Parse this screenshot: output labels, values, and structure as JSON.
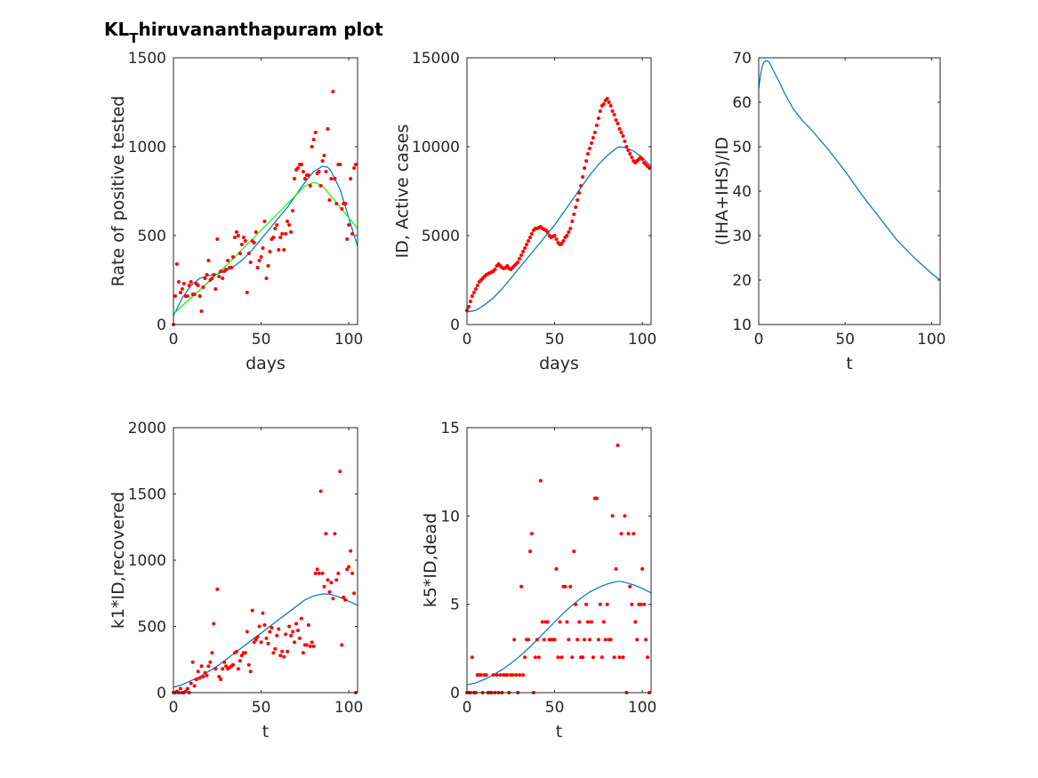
{
  "figure": {
    "title_main": "KL",
    "title_sub": "T",
    "title_rest": "hiruvananthapuram plot"
  },
  "colors": {
    "data_points": "#ff0000",
    "model_curve": "#0072bd",
    "fit_curve": "#00ff00",
    "axis": "#262626",
    "background": "#ffffff"
  },
  "chart_data": [
    {
      "id": "positive",
      "type": "scatter",
      "xlabel": "days",
      "ylabel": "Rate of positive tested",
      "xlim": [
        0,
        105
      ],
      "ylim": [
        0,
        1500
      ],
      "xticks": [
        0,
        50,
        100
      ],
      "yticks": [
        0,
        500,
        1000,
        1500
      ],
      "scatter_x": [
        0,
        1,
        2,
        3,
        4,
        5,
        6,
        7,
        8,
        9,
        10,
        11,
        12,
        13,
        14,
        15,
        16,
        17,
        18,
        19,
        20,
        21,
        22,
        23,
        24,
        25,
        26,
        27,
        28,
        29,
        30,
        31,
        32,
        33,
        34,
        35,
        36,
        37,
        38,
        39,
        40,
        41,
        42,
        43,
        44,
        45,
        46,
        47,
        48,
        49,
        50,
        51,
        52,
        53,
        54,
        55,
        56,
        57,
        58,
        59,
        60,
        61,
        62,
        63,
        64,
        65,
        66,
        67,
        68,
        69,
        70,
        71,
        72,
        73,
        74,
        75,
        76,
        77,
        78,
        79,
        80,
        81,
        82,
        83,
        84,
        85,
        86,
        87,
        88,
        89,
        90,
        91,
        92,
        93,
        94,
        95,
        96,
        97,
        98,
        99,
        100,
        101,
        102,
        103,
        104
      ],
      "scatter_y": [
        0,
        160,
        340,
        240,
        180,
        200,
        230,
        160,
        160,
        220,
        240,
        170,
        170,
        230,
        220,
        160,
        75,
        210,
        260,
        280,
        360,
        250,
        260,
        280,
        200,
        480,
        270,
        300,
        260,
        300,
        310,
        360,
        320,
        320,
        380,
        490,
        520,
        500,
        400,
        450,
        490,
        470,
        180,
        400,
        350,
        470,
        460,
        520,
        320,
        360,
        380,
        430,
        580,
        260,
        330,
        410,
        480,
        490,
        540,
        560,
        420,
        490,
        510,
        420,
        510,
        580,
        560,
        520,
        640,
        820,
        870,
        880,
        900,
        900,
        860,
        820,
        840,
        840,
        780,
        1000,
        1040,
        1080,
        850,
        860,
        780,
        920,
        950,
        860,
        1100,
        700,
        820,
        1310,
        820,
        680,
        900,
        900,
        650,
        680,
        680,
        480,
        560,
        820,
        510,
        880,
        900
      ],
      "curves": [
        {
          "name": "model",
          "x": [
            0,
            5,
            10,
            15,
            20,
            25,
            30,
            35,
            40,
            45,
            50,
            55,
            60,
            65,
            70,
            75,
            80,
            85,
            88,
            90,
            95,
            100,
            105
          ],
          "y": [
            50,
            150,
            220,
            260,
            275,
            285,
            300,
            330,
            370,
            420,
            480,
            540,
            600,
            660,
            730,
            800,
            860,
            890,
            885,
            860,
            760,
            600,
            440
          ]
        },
        {
          "name": "fit",
          "x": [
            0,
            10,
            20,
            30,
            40,
            50,
            60,
            70,
            75,
            80,
            85,
            90,
            95,
            100,
            105
          ],
          "y": [
            60,
            150,
            240,
            330,
            430,
            530,
            630,
            730,
            780,
            800,
            780,
            720,
            660,
            600,
            540
          ]
        }
      ]
    },
    {
      "id": "active",
      "type": "scatter",
      "xlabel": "days",
      "ylabel": "ID, Active cases",
      "xlim": [
        0,
        105
      ],
      "ylim": [
        0,
        15000
      ],
      "xticks": [
        0,
        50,
        100
      ],
      "yticks": [
        0,
        5000,
        10000,
        15000
      ],
      "scatter_x": [
        0,
        1,
        2,
        3,
        4,
        5,
        6,
        7,
        8,
        9,
        10,
        11,
        12,
        13,
        14,
        15,
        16,
        17,
        18,
        19,
        20,
        21,
        22,
        23,
        24,
        25,
        26,
        27,
        28,
        29,
        30,
        31,
        32,
        33,
        34,
        35,
        36,
        37,
        38,
        39,
        40,
        41,
        42,
        43,
        44,
        45,
        46,
        47,
        48,
        49,
        50,
        51,
        52,
        53,
        54,
        55,
        56,
        57,
        58,
        59,
        60,
        61,
        62,
        63,
        64,
        65,
        66,
        67,
        68,
        69,
        70,
        71,
        72,
        73,
        74,
        75,
        76,
        77,
        78,
        79,
        80,
        81,
        82,
        83,
        84,
        85,
        86,
        87,
        88,
        89,
        90,
        91,
        92,
        93,
        94,
        95,
        96,
        97,
        98,
        99,
        100,
        101,
        102,
        103,
        104
      ],
      "scatter_y": [
        800,
        1000,
        1300,
        1600,
        1800,
        2000,
        2200,
        2400,
        2500,
        2600,
        2700,
        2800,
        2850,
        2900,
        2950,
        3000,
        3100,
        3300,
        3400,
        3300,
        3200,
        3150,
        3200,
        3300,
        3150,
        3100,
        3200,
        3300,
        3400,
        3500,
        3700,
        3900,
        4100,
        4300,
        4500,
        4700,
        4900,
        5100,
        5300,
        5400,
        5400,
        5450,
        5500,
        5400,
        5350,
        5300,
        5200,
        5000,
        4900,
        4950,
        5000,
        4800,
        4600,
        4500,
        4550,
        4700,
        4900,
        5000,
        5200,
        5400,
        5800,
        6200,
        6600,
        7000,
        7400,
        7800,
        8300,
        8800,
        9200,
        9600,
        9900,
        10200,
        10500,
        10800,
        11200,
        11600,
        12000,
        12300,
        12400,
        12600,
        12700,
        12500,
        12300,
        12000,
        11800,
        11500,
        11300,
        11000,
        10800,
        10600,
        10300,
        10000,
        9800,
        9600,
        9400,
        9200,
        9100,
        9200,
        9300,
        9400,
        9300,
        9100,
        9000,
        8900,
        8800
      ],
      "curves": [
        {
          "name": "model",
          "x": [
            0,
            5,
            10,
            15,
            20,
            25,
            30,
            35,
            40,
            45,
            50,
            55,
            60,
            65,
            70,
            75,
            80,
            85,
            87,
            90,
            95,
            100,
            105
          ],
          "y": [
            700,
            800,
            1100,
            1500,
            2000,
            2600,
            3200,
            3800,
            4400,
            5000,
            5600,
            6300,
            7000,
            7700,
            8400,
            9000,
            9500,
            9900,
            10000,
            9950,
            9750,
            9400,
            8900
          ]
        }
      ]
    },
    {
      "id": "ratio",
      "type": "line",
      "xlabel": "t",
      "ylabel": "(IHA+IHS)/ID",
      "xlim": [
        0,
        105
      ],
      "ylim": [
        10,
        70
      ],
      "xticks": [
        0,
        50,
        100
      ],
      "yticks": [
        10,
        20,
        30,
        40,
        50,
        60,
        70
      ],
      "curves": [
        {
          "name": "model",
          "x": [
            0,
            1,
            2,
            3,
            4,
            5,
            6,
            7,
            8,
            10,
            12,
            15,
            20,
            25,
            30,
            40,
            50,
            60,
            70,
            80,
            90,
            100,
            105
          ],
          "y": [
            63,
            66,
            68,
            69,
            69.3,
            69.3,
            69,
            68.3,
            67.5,
            66,
            64.5,
            62,
            58.5,
            56,
            54,
            49.5,
            44.5,
            39,
            34,
            29,
            25,
            21.5,
            20
          ]
        }
      ]
    },
    {
      "id": "recovered",
      "type": "scatter",
      "xlabel": "t",
      "ylabel": "k1*ID,recovered",
      "xlim": [
        0,
        105
      ],
      "ylim": [
        0,
        2000
      ],
      "xticks": [
        0,
        50,
        100
      ],
      "yticks": [
        0,
        500,
        1000,
        1500,
        2000
      ],
      "scatter_x": [
        0,
        1,
        2,
        3,
        4,
        5,
        6,
        7,
        8,
        9,
        10,
        11,
        12,
        13,
        14,
        15,
        16,
        17,
        18,
        19,
        20,
        21,
        22,
        23,
        24,
        25,
        26,
        27,
        28,
        29,
        30,
        31,
        32,
        33,
        34,
        35,
        36,
        37,
        38,
        39,
        40,
        41,
        42,
        43,
        44,
        45,
        46,
        47,
        48,
        49,
        50,
        51,
        52,
        53,
        54,
        55,
        56,
        57,
        58,
        59,
        60,
        61,
        62,
        63,
        64,
        65,
        66,
        67,
        68,
        69,
        70,
        71,
        72,
        73,
        74,
        75,
        76,
        77,
        78,
        79,
        80,
        81,
        82,
        83,
        84,
        85,
        86,
        87,
        88,
        89,
        90,
        91,
        92,
        93,
        94,
        95,
        96,
        97,
        98,
        99,
        100,
        101,
        102,
        103,
        104
      ],
      "scatter_y": [
        0,
        0,
        10,
        0,
        30,
        0,
        0,
        10,
        30,
        0,
        70,
        230,
        50,
        100,
        160,
        110,
        200,
        120,
        150,
        130,
        200,
        230,
        300,
        520,
        180,
        780,
        120,
        100,
        180,
        230,
        200,
        180,
        190,
        200,
        210,
        300,
        310,
        180,
        240,
        280,
        300,
        300,
        460,
        210,
        160,
        620,
        380,
        400,
        420,
        500,
        380,
        600,
        510,
        410,
        370,
        460,
        490,
        300,
        330,
        430,
        480,
        280,
        310,
        270,
        440,
        310,
        500,
        430,
        460,
        380,
        520,
        470,
        410,
        560,
        300,
        360,
        360,
        510,
        350,
        380,
        350,
        900,
        930,
        900,
        1520,
        900,
        800,
        1200,
        850,
        760,
        830,
        710,
        1200,
        850,
        900,
        1670,
        360,
        720,
        700,
        930,
        950,
        1070,
        900,
        750,
        0
      ],
      "curves": [
        {
          "name": "model",
          "x": [
            0,
            5,
            10,
            15,
            20,
            25,
            30,
            35,
            40,
            45,
            50,
            55,
            60,
            65,
            70,
            75,
            80,
            85,
            87,
            90,
            95,
            100,
            105
          ],
          "y": [
            40,
            60,
            90,
            120,
            160,
            200,
            250,
            300,
            350,
            400,
            450,
            500,
            550,
            600,
            650,
            700,
            730,
            745,
            745,
            740,
            720,
            690,
            660
          ]
        }
      ]
    },
    {
      "id": "dead",
      "type": "scatter",
      "xlabel": "t",
      "ylabel": "k5*ID,dead",
      "xlim": [
        0,
        105
      ],
      "ylim": [
        0,
        15
      ],
      "xticks": [
        0,
        50,
        100
      ],
      "yticks": [
        0,
        5,
        10,
        15
      ],
      "scatter_x": [
        0,
        1,
        2,
        3,
        4,
        5,
        6,
        7,
        8,
        9,
        10,
        11,
        12,
        13,
        14,
        15,
        16,
        17,
        18,
        19,
        20,
        21,
        22,
        23,
        24,
        25,
        26,
        27,
        28,
        29,
        30,
        31,
        32,
        33,
        34,
        35,
        36,
        37,
        38,
        39,
        40,
        41,
        42,
        43,
        44,
        45,
        46,
        47,
        48,
        49,
        50,
        51,
        52,
        53,
        54,
        55,
        56,
        57,
        58,
        59,
        60,
        61,
        62,
        63,
        64,
        65,
        66,
        67,
        68,
        69,
        70,
        71,
        72,
        73,
        74,
        75,
        76,
        77,
        78,
        79,
        80,
        81,
        82,
        83,
        84,
        85,
        86,
        87,
        88,
        89,
        90,
        91,
        92,
        93,
        94,
        95,
        96,
        97,
        98,
        99,
        100,
        101,
        102,
        103,
        104
      ],
      "scatter_y": [
        0,
        0,
        0,
        2,
        0,
        0,
        1,
        1,
        1,
        0,
        1,
        1,
        0,
        0,
        0,
        1,
        0,
        1,
        0,
        1,
        0,
        1,
        1,
        1,
        0,
        1,
        1,
        3,
        1,
        0,
        1,
        6,
        1,
        2,
        3,
        3,
        8,
        9,
        0,
        2,
        3,
        2,
        12,
        4,
        3,
        4,
        4,
        3,
        3,
        3,
        3,
        7,
        2,
        4,
        2,
        6,
        6,
        4,
        3,
        6,
        2,
        8,
        5,
        3,
        4,
        2,
        2,
        3,
        5,
        4,
        3,
        4,
        2,
        11,
        11,
        3,
        5,
        2,
        4,
        3,
        5,
        3,
        3,
        10,
        2,
        7,
        14,
        2,
        9,
        2,
        10,
        0,
        9,
        6,
        5,
        9,
        4,
        3,
        5,
        5,
        7,
        5,
        3,
        2,
        0
      ],
      "curves": [
        {
          "name": "model",
          "x": [
            0,
            5,
            10,
            15,
            20,
            25,
            30,
            35,
            40,
            45,
            50,
            55,
            60,
            65,
            70,
            75,
            80,
            85,
            87,
            90,
            95,
            100,
            105
          ],
          "y": [
            0.45,
            0.55,
            0.75,
            1.0,
            1.3,
            1.65,
            2.05,
            2.5,
            3.0,
            3.5,
            4.0,
            4.5,
            4.95,
            5.35,
            5.7,
            5.95,
            6.15,
            6.28,
            6.3,
            6.25,
            6.1,
            5.9,
            5.65
          ]
        }
      ]
    }
  ]
}
